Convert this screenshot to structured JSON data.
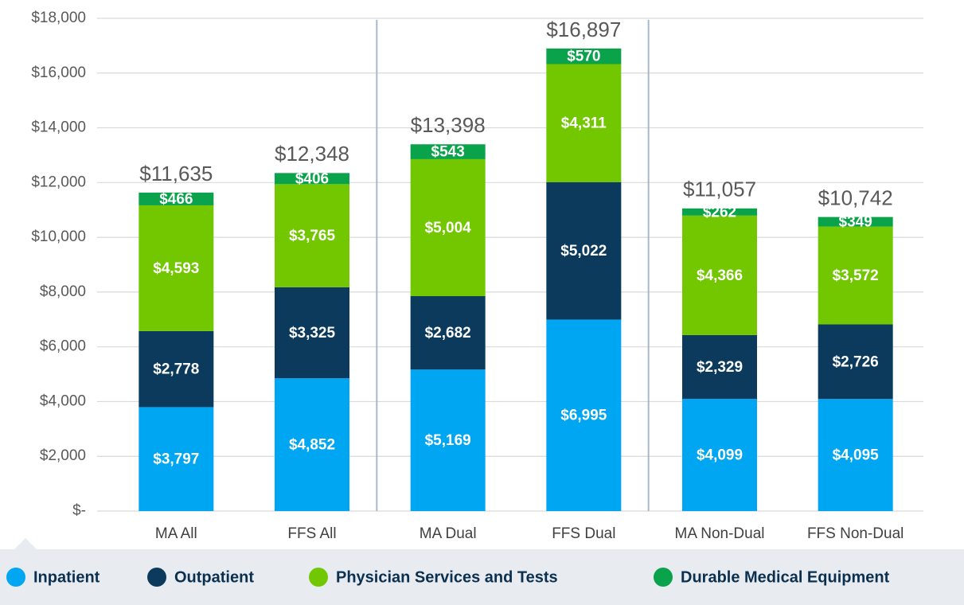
{
  "chart_data": {
    "type": "stacked_bar",
    "categories": [
      "MA All",
      "FFS All",
      "MA Dual",
      "FFS Dual",
      "MA Non-Dual",
      "FFS Non-Dual"
    ],
    "series": [
      {
        "name": "Inpatient",
        "color": "#00a6f2",
        "values": [
          3797,
          4852,
          5169,
          6995,
          4099,
          4095
        ],
        "value_labels": [
          "$3,797",
          "$4,852",
          "$5,169",
          "$6,995",
          "$4,099",
          "$4,095"
        ]
      },
      {
        "name": "Outpatient",
        "color": "#0b3a5c",
        "values": [
          2778,
          3325,
          2682,
          5022,
          2329,
          2726
        ],
        "value_labels": [
          "$2,778",
          "$3,325",
          "$2,682",
          "$5,022",
          "$2,329",
          "$2,726"
        ]
      },
      {
        "name": "Physician Services and Tests",
        "color": "#72c700",
        "values": [
          4593,
          3765,
          5004,
          4311,
          4366,
          3572
        ],
        "value_labels": [
          "$4,593",
          "$3,765",
          "$5,004",
          "$4,311",
          "$4,366",
          "$3,572"
        ]
      },
      {
        "name": "Durable Medical Equipment",
        "color": "#0aa24a",
        "values": [
          466,
          406,
          543,
          570,
          262,
          349
        ],
        "value_labels": [
          "$466",
          "$406",
          "$543",
          "$570",
          "$262",
          "$349"
        ]
      }
    ],
    "totals": [
      11635,
      12348,
      13398,
      16897,
      11057,
      10742
    ],
    "total_labels": [
      "$11,635",
      "$12,348",
      "$13,398",
      "$16,897",
      "$11,057",
      "$10,742"
    ],
    "ylim": [
      0,
      18000
    ],
    "yticks": [
      {
        "value": 0,
        "label": "$-"
      },
      {
        "value": 2000,
        "label": "$2,000"
      },
      {
        "value": 4000,
        "label": "$4,000"
      },
      {
        "value": 6000,
        "label": "$6,000"
      },
      {
        "value": 8000,
        "label": "$8,000"
      },
      {
        "value": 10000,
        "label": "$10,000"
      },
      {
        "value": 12000,
        "label": "$12,000"
      },
      {
        "value": 14000,
        "label": "$14,000"
      },
      {
        "value": 16000,
        "label": "$16,000"
      },
      {
        "value": 18000,
        "label": "$18,000"
      }
    ],
    "grid": true,
    "legend": "bottom"
  }
}
